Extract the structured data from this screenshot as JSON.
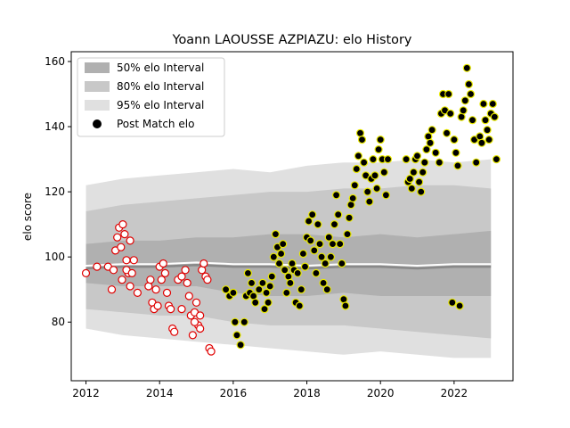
{
  "chart_data": {
    "type": "scatter",
    "title": "Yoann LAOUSSE AZPIAZU: elo History",
    "xlabel": "",
    "ylabel": "elo score",
    "xlim": [
      2011.6,
      2023.6
    ],
    "ylim": [
      62,
      163
    ],
    "x_ticks": [
      2012,
      2014,
      2016,
      2018,
      2020,
      2022
    ],
    "y_ticks": [
      80,
      100,
      120,
      140,
      160
    ],
    "grid": false,
    "legend_position": "top-left",
    "legend": [
      {
        "label": "50% elo Interval",
        "kind": "band",
        "color": "#b0b0b0"
      },
      {
        "label": "80% elo Interval",
        "kind": "band",
        "color": "#c8c8c8"
      },
      {
        "label": "95% elo Interval",
        "kind": "band",
        "color": "#e0e0e0"
      },
      {
        "label": "Post Match elo",
        "kind": "marker",
        "color": "#000000"
      }
    ],
    "colors": {
      "band_50": "#b0b0b0",
      "band_80": "#c8c8c8",
      "band_95": "#e0e0e0",
      "early_marker_fill": "#ffffff",
      "early_marker_edge": "#e00000",
      "late_marker_fill": "#000000",
      "late_marker_edge": "#e8e800",
      "median_line": "#ffffff"
    },
    "bands": {
      "x": [
        2012.0,
        2013.0,
        2014.0,
        2015.0,
        2016.0,
        2017.0,
        2018.0,
        2019.0,
        2020.0,
        2021.0,
        2022.0,
        2023.0
      ],
      "median": [
        96.5,
        97,
        97,
        97.5,
        97,
        97,
        96.5,
        97,
        97,
        96.5,
        97,
        97
      ],
      "band_50": [
        [
          92,
          104
        ],
        [
          91,
          105
        ],
        [
          91,
          105
        ],
        [
          91,
          106
        ],
        [
          89,
          106
        ],
        [
          88,
          107
        ],
        [
          88,
          107
        ],
        [
          89,
          106
        ],
        [
          88,
          107
        ],
        [
          88,
          106
        ],
        [
          88,
          107
        ],
        [
          88,
          108
        ]
      ],
      "band_80": [
        [
          84,
          114
        ],
        [
          83,
          116
        ],
        [
          82,
          117
        ],
        [
          82,
          118
        ],
        [
          80,
          119
        ],
        [
          79,
          120
        ],
        [
          79,
          120
        ],
        [
          79,
          121
        ],
        [
          78,
          121
        ],
        [
          77,
          122
        ],
        [
          76,
          122
        ],
        [
          75,
          121
        ]
      ],
      "band_95": [
        [
          78,
          122
        ],
        [
          76,
          124
        ],
        [
          75,
          125
        ],
        [
          74,
          126
        ],
        [
          73,
          127
        ],
        [
          72,
          126
        ],
        [
          71,
          128
        ],
        [
          70,
          129
        ],
        [
          71,
          129
        ],
        [
          70,
          130
        ],
        [
          69,
          129
        ],
        [
          69,
          130
        ]
      ]
    },
    "series": [
      {
        "name": "",
        "style": "early",
        "points": [
          [
            2012.0,
            95
          ],
          [
            2012.3,
            97
          ],
          [
            2012.6,
            97
          ],
          [
            2012.7,
            90
          ],
          [
            2012.75,
            96
          ],
          [
            2012.8,
            102
          ],
          [
            2012.85,
            106
          ],
          [
            2012.9,
            109
          ],
          [
            2012.95,
            103
          ],
          [
            2012.98,
            93
          ],
          [
            2013.0,
            110
          ],
          [
            2013.05,
            107
          ],
          [
            2013.1,
            99
          ],
          [
            2013.15,
            95
          ],
          [
            2013.2,
            105
          ],
          [
            2013.3,
            99
          ],
          [
            2013.4,
            89
          ],
          [
            2013.2,
            91
          ],
          [
            2013.1,
            96
          ],
          [
            2013.25,
            95
          ],
          [
            2013.7,
            91
          ],
          [
            2013.75,
            93
          ],
          [
            2013.8,
            86
          ],
          [
            2013.85,
            84
          ],
          [
            2013.9,
            90
          ],
          [
            2013.95,
            85
          ],
          [
            2014.0,
            97
          ],
          [
            2014.05,
            93
          ],
          [
            2014.1,
            98
          ],
          [
            2014.15,
            95
          ],
          [
            2014.2,
            89
          ],
          [
            2014.25,
            85
          ],
          [
            2014.3,
            84
          ],
          [
            2014.35,
            78
          ],
          [
            2014.4,
            77
          ],
          [
            2014.5,
            93
          ],
          [
            2014.6,
            94
          ],
          [
            2014.7,
            96
          ],
          [
            2014.75,
            92
          ],
          [
            2014.8,
            88
          ],
          [
            2014.85,
            82
          ],
          [
            2014.9,
            76
          ],
          [
            2014.95,
            83
          ],
          [
            2015.0,
            86
          ],
          [
            2015.05,
            79
          ],
          [
            2015.1,
            82
          ],
          [
            2015.15,
            96
          ],
          [
            2015.2,
            98
          ],
          [
            2015.25,
            94
          ],
          [
            2015.3,
            93
          ],
          [
            2015.35,
            72
          ],
          [
            2015.4,
            71
          ],
          [
            2015.1,
            78
          ],
          [
            2014.6,
            84
          ],
          [
            2014.95,
            80
          ]
        ]
      },
      {
        "name": "",
        "style": "late",
        "points": [
          [
            2015.8,
            90
          ],
          [
            2015.9,
            88
          ],
          [
            2016.0,
            89
          ],
          [
            2016.05,
            80
          ],
          [
            2016.1,
            76
          ],
          [
            2016.2,
            73
          ],
          [
            2016.3,
            80
          ],
          [
            2016.35,
            88
          ],
          [
            2016.4,
            95
          ],
          [
            2016.45,
            89
          ],
          [
            2016.5,
            92
          ],
          [
            2016.55,
            88
          ],
          [
            2016.6,
            86
          ],
          [
            2016.7,
            90
          ],
          [
            2016.8,
            92
          ],
          [
            2016.85,
            84
          ],
          [
            2016.9,
            89
          ],
          [
            2016.95,
            86
          ],
          [
            2017.0,
            91
          ],
          [
            2017.05,
            94
          ],
          [
            2017.1,
            100
          ],
          [
            2017.15,
            107
          ],
          [
            2017.2,
            103
          ],
          [
            2017.25,
            98
          ],
          [
            2017.3,
            101
          ],
          [
            2017.35,
            104
          ],
          [
            2017.4,
            96
          ],
          [
            2017.45,
            89
          ],
          [
            2017.5,
            94
          ],
          [
            2017.55,
            92
          ],
          [
            2017.6,
            98
          ],
          [
            2017.65,
            96
          ],
          [
            2017.7,
            86
          ],
          [
            2017.75,
            95
          ],
          [
            2017.8,
            85
          ],
          [
            2017.85,
            90
          ],
          [
            2017.9,
            101
          ],
          [
            2017.95,
            97
          ],
          [
            2018.0,
            106
          ],
          [
            2018.05,
            111
          ],
          [
            2018.1,
            105
          ],
          [
            2018.15,
            113
          ],
          [
            2018.2,
            102
          ],
          [
            2018.25,
            95
          ],
          [
            2018.3,
            110
          ],
          [
            2018.35,
            104
          ],
          [
            2018.4,
            100
          ],
          [
            2018.45,
            92
          ],
          [
            2018.5,
            98
          ],
          [
            2018.55,
            90
          ],
          [
            2018.6,
            106
          ],
          [
            2018.65,
            100
          ],
          [
            2018.7,
            104
          ],
          [
            2018.75,
            110
          ],
          [
            2018.8,
            119
          ],
          [
            2018.85,
            113
          ],
          [
            2018.9,
            104
          ],
          [
            2018.95,
            98
          ],
          [
            2019.0,
            87
          ],
          [
            2019.05,
            85
          ],
          [
            2019.1,
            107
          ],
          [
            2019.15,
            112
          ],
          [
            2019.2,
            116
          ],
          [
            2019.25,
            118
          ],
          [
            2019.3,
            122
          ],
          [
            2019.35,
            127
          ],
          [
            2019.4,
            131
          ],
          [
            2019.45,
            138
          ],
          [
            2019.5,
            136
          ],
          [
            2019.55,
            129
          ],
          [
            2019.6,
            125
          ],
          [
            2019.65,
            120
          ],
          [
            2019.7,
            117
          ],
          [
            2019.75,
            124
          ],
          [
            2019.8,
            130
          ],
          [
            2019.85,
            125
          ],
          [
            2019.9,
            121
          ],
          [
            2019.95,
            133
          ],
          [
            2020.0,
            136
          ],
          [
            2020.05,
            130
          ],
          [
            2020.1,
            126
          ],
          [
            2020.15,
            119
          ],
          [
            2020.2,
            130
          ],
          [
            2020.7,
            130
          ],
          [
            2020.75,
            123
          ],
          [
            2020.8,
            124
          ],
          [
            2020.85,
            121
          ],
          [
            2020.9,
            126
          ],
          [
            2020.95,
            130
          ],
          [
            2021.0,
            131
          ],
          [
            2021.05,
            123
          ],
          [
            2021.1,
            120
          ],
          [
            2021.15,
            126
          ],
          [
            2021.2,
            129
          ],
          [
            2021.25,
            133
          ],
          [
            2021.3,
            137
          ],
          [
            2021.35,
            135
          ],
          [
            2021.4,
            139
          ],
          [
            2021.5,
            132
          ],
          [
            2021.6,
            129
          ],
          [
            2021.65,
            144
          ],
          [
            2021.7,
            150
          ],
          [
            2021.75,
            145
          ],
          [
            2021.8,
            138
          ],
          [
            2021.85,
            150
          ],
          [
            2021.9,
            144
          ],
          [
            2021.95,
            86
          ],
          [
            2022.0,
            136
          ],
          [
            2022.05,
            132
          ],
          [
            2022.1,
            128
          ],
          [
            2022.15,
            85
          ],
          [
            2022.2,
            143
          ],
          [
            2022.25,
            145
          ],
          [
            2022.3,
            148
          ],
          [
            2022.35,
            158
          ],
          [
            2022.4,
            153
          ],
          [
            2022.45,
            150
          ],
          [
            2022.5,
            142
          ],
          [
            2022.55,
            136
          ],
          [
            2022.6,
            129
          ],
          [
            2022.7,
            137
          ],
          [
            2022.75,
            135
          ],
          [
            2022.8,
            147
          ],
          [
            2022.85,
            142
          ],
          [
            2022.9,
            139
          ],
          [
            2022.95,
            136
          ],
          [
            2023.0,
            144
          ],
          [
            2023.05,
            147
          ],
          [
            2023.1,
            143
          ],
          [
            2023.15,
            130
          ]
        ]
      }
    ]
  }
}
